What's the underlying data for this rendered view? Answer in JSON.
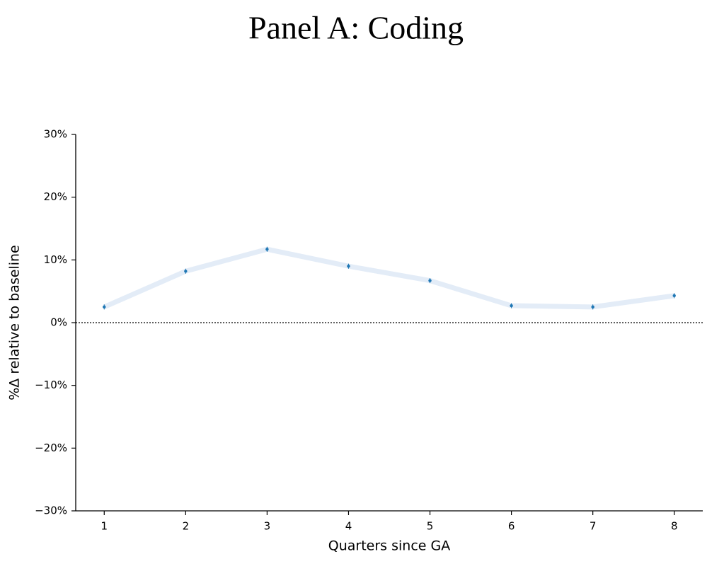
{
  "chart_data": {
    "type": "line",
    "title": "Panel A: Coding",
    "xlabel": "Quarters since GA",
    "ylabel": "%Δ relative to baseline",
    "x": [
      1,
      2,
      3,
      4,
      5,
      6,
      7,
      8
    ],
    "series": [
      {
        "color": "#1f77b4",
        "band_color": "#e3ecf7",
        "values": [
          2.5,
          8.2,
          11.7,
          9.0,
          6.7,
          2.7,
          2.5,
          4.3
        ],
        "errors": [
          0.4,
          0.4,
          0.4,
          0.4,
          0.4,
          0.4,
          0.4,
          0.4
        ]
      }
    ],
    "xlim": [
      0.65,
      8.35
    ],
    "ylim": [
      -30,
      30
    ],
    "xticks": [
      1,
      2,
      3,
      4,
      5,
      6,
      7,
      8
    ],
    "yticks": [
      {
        "value": -30,
        "label": "−30%"
      },
      {
        "value": -20,
        "label": "−20%"
      },
      {
        "value": -10,
        "label": "−10%"
      },
      {
        "value": 0,
        "label": "0%"
      },
      {
        "value": 10,
        "label": "10%"
      },
      {
        "value": 20,
        "label": "20%"
      },
      {
        "value": 30,
        "label": "30%"
      }
    ],
    "hline": 0
  }
}
